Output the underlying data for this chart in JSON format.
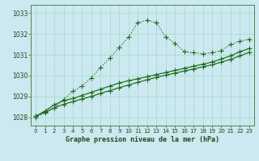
{
  "title": "Graphe pression niveau de la mer (hPa)",
  "bg_color": "#cce8f0",
  "plot_bg": "#cce8f0",
  "grid_color": "#aaddcc",
  "line_color": "#1a6b1a",
  "marker_color": "#1a6b1a",
  "xlim": [
    -0.5,
    23.5
  ],
  "ylim": [
    1027.6,
    1033.4
  ],
  "yticks": [
    1028,
    1029,
    1030,
    1031,
    1032,
    1033
  ],
  "xticks": [
    0,
    1,
    2,
    3,
    4,
    5,
    6,
    7,
    8,
    9,
    10,
    11,
    12,
    13,
    14,
    15,
    16,
    17,
    18,
    19,
    20,
    21,
    22,
    23
  ],
  "series1": [
    1028.0,
    1028.2,
    1028.45,
    1028.85,
    1029.25,
    1029.5,
    1029.9,
    1030.4,
    1030.85,
    1031.35,
    1031.85,
    1032.55,
    1032.65,
    1032.55,
    1031.85,
    1031.55,
    1031.15,
    1031.1,
    1031.05,
    1031.1,
    1031.2,
    1031.5,
    1031.65,
    1031.75
  ],
  "series2": [
    1028.05,
    1028.3,
    1028.6,
    1028.8,
    1028.9,
    1029.05,
    1029.2,
    1029.35,
    1029.5,
    1029.65,
    1029.75,
    1029.85,
    1029.95,
    1030.05,
    1030.15,
    1030.25,
    1030.35,
    1030.45,
    1030.55,
    1030.65,
    1030.8,
    1030.95,
    1031.15,
    1031.3
  ],
  "series3": [
    1028.05,
    1028.25,
    1028.45,
    1028.62,
    1028.75,
    1028.88,
    1029.0,
    1029.15,
    1029.28,
    1029.42,
    1029.55,
    1029.68,
    1029.8,
    1029.92,
    1030.02,
    1030.12,
    1030.22,
    1030.32,
    1030.42,
    1030.52,
    1030.65,
    1030.78,
    1030.95,
    1031.12
  ]
}
